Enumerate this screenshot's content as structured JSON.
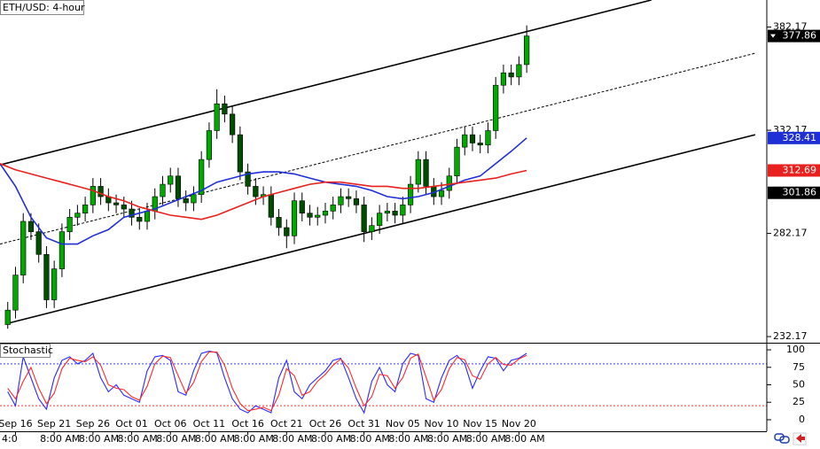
{
  "chart_data": {
    "type": "candlestick",
    "title": "ETH/USD: 4-hour",
    "xlim": [
      -2,
      97
    ],
    "xticks": [
      {
        "value": 0,
        "label": "Sep 16"
      },
      {
        "value": 5,
        "label": "Sep 21"
      },
      {
        "value": 10,
        "label": "Sep 26"
      },
      {
        "value": 15,
        "label": "Oct 01"
      },
      {
        "value": 20,
        "label": "Oct 06"
      },
      {
        "value": 25,
        "label": "Oct 11"
      },
      {
        "value": 30,
        "label": "Oct 16"
      },
      {
        "value": 35,
        "label": "Oct 21"
      },
      {
        "value": 40,
        "label": "Oct 26"
      },
      {
        "value": 45,
        "label": "Oct 31"
      },
      {
        "value": 50,
        "label": "Nov 05"
      },
      {
        "value": 55,
        "label": "Nov 10"
      },
      {
        "value": 60,
        "label": "Nov 15"
      },
      {
        "value": 65,
        "label": "Nov 20"
      }
    ],
    "x_sublabels": [
      "4:0",
      "8:00 AM",
      "8:00 AM",
      "8:00 AM",
      "8:00 AM",
      "8:00 AM",
      "8:00 AM",
      "8:00 AM",
      "8:00 AM",
      "8:00 AM",
      "8:00 AM",
      "8:00 AM",
      "8:00 AM",
      "8:00 AM"
    ],
    "ylim": [
      229.2,
      395.3
    ],
    "yticks": [
      232.17,
      282.17,
      332.17,
      382.17
    ],
    "up_color": "#00a800",
    "down_color": "#004d00",
    "x": [
      -1,
      0,
      1,
      2,
      3,
      4,
      5,
      6,
      7,
      8,
      9,
      10,
      11,
      12,
      13,
      14,
      15,
      16,
      17,
      18,
      19,
      20,
      21,
      22,
      23,
      24,
      25,
      26,
      27,
      28,
      29,
      30,
      31,
      32,
      33,
      34,
      35,
      36,
      37,
      38,
      39,
      40,
      41,
      42,
      43,
      44,
      45,
      46,
      47,
      48,
      49,
      50,
      51,
      52,
      53,
      54,
      55,
      56,
      57,
      58,
      59,
      60,
      61,
      62,
      63,
      64,
      65,
      66
    ],
    "open": [
      238,
      245,
      262,
      288,
      283,
      272,
      250,
      265,
      283,
      290,
      292,
      296,
      305,
      300,
      297,
      296,
      294,
      290,
      288,
      293,
      300,
      306,
      310,
      299,
      297,
      301,
      318,
      332,
      345,
      340,
      330,
      312,
      305,
      300,
      301,
      290,
      285,
      281,
      298,
      292,
      290,
      291,
      293,
      296,
      300,
      299,
      296,
      283,
      286,
      292,
      293,
      291,
      296,
      306,
      318,
      305,
      300,
      303,
      310,
      324,
      330,
      326,
      325,
      332,
      354,
      360,
      358,
      364
    ],
    "high": [
      249,
      266,
      292,
      292,
      287,
      276,
      269,
      287,
      294,
      296,
      300,
      309,
      309,
      304,
      301,
      300,
      298,
      294,
      297,
      304,
      310,
      314,
      314,
      303,
      305,
      322,
      336,
      352,
      349,
      344,
      334,
      316,
      309,
      305,
      305,
      294,
      289,
      302,
      302,
      296,
      295,
      297,
      300,
      304,
      304,
      303,
      300,
      290,
      296,
      297,
      297,
      300,
      310,
      322,
      322,
      309,
      307,
      314,
      328,
      334,
      334,
      330,
      336,
      358,
      364,
      364,
      368,
      383
    ],
    "low": [
      236,
      241,
      258,
      279,
      268,
      246,
      246,
      261,
      279,
      286,
      288,
      292,
      296,
      293,
      292,
      290,
      286,
      284,
      284,
      289,
      296,
      302,
      295,
      293,
      293,
      297,
      314,
      328,
      336,
      326,
      308,
      301,
      296,
      296,
      286,
      281,
      275,
      277,
      288,
      286,
      286,
      287,
      289,
      292,
      295,
      292,
      278,
      279,
      282,
      288,
      287,
      287,
      292,
      302,
      301,
      296,
      296,
      299,
      306,
      320,
      322,
      321,
      321,
      328,
      350,
      354,
      354,
      360
    ],
    "close": [
      245,
      262,
      288,
      283,
      272,
      250,
      265,
      283,
      290,
      292,
      296,
      305,
      300,
      297,
      296,
      294,
      290,
      288,
      293,
      300,
      306,
      310,
      299,
      297,
      301,
      318,
      332,
      345,
      340,
      330,
      312,
      305,
      300,
      301,
      290,
      285,
      281,
      298,
      292,
      290,
      291,
      293,
      296,
      300,
      299,
      296,
      283,
      286,
      292,
      293,
      291,
      296,
      306,
      318,
      305,
      300,
      303,
      310,
      324,
      330,
      326,
      325,
      332,
      354,
      360,
      358,
      364,
      377.86
    ],
    "series": [
      {
        "color": "#1f2fd6",
        "x": [
          -2,
          0,
          2,
          4,
          6,
          8,
          10,
          12,
          14,
          16,
          18,
          20,
          22,
          24,
          26,
          28,
          30,
          32,
          34,
          36,
          38,
          40,
          42,
          44,
          46,
          48,
          50,
          52,
          54,
          56,
          58,
          60,
          62,
          64,
          66
        ],
        "values": [
          316,
          305,
          290,
          280,
          277,
          277,
          281,
          284,
          290,
          292,
          294,
          297,
          300,
          303,
          307,
          309,
          311,
          312,
          312,
          311,
          309,
          307,
          306,
          305,
          303,
          300,
          299,
          300,
          302,
          305,
          308,
          310,
          316,
          322,
          328.41
        ]
      },
      {
        "color": "#e8201e",
        "x": [
          -2,
          0,
          2,
          4,
          6,
          8,
          10,
          12,
          14,
          16,
          18,
          20,
          22,
          24,
          26,
          28,
          30,
          32,
          34,
          36,
          38,
          40,
          42,
          44,
          46,
          48,
          50,
          52,
          54,
          56,
          58,
          60,
          62,
          64,
          66
        ],
        "values": [
          316,
          313,
          311,
          309,
          307,
          305,
          303,
          300,
          298,
          295,
          293,
          291,
          290,
          289,
          291,
          294,
          297,
          300,
          302,
          304,
          306,
          307,
          307,
          306,
          305,
          305,
          304,
          304,
          305,
          306,
          307,
          308,
          309,
          311,
          312.69
        ]
      }
    ],
    "trendlines": [
      {
        "x": [
          -2,
          82.1
        ],
        "values": [
          315.4,
          395.3
        ],
        "dashed": false
      },
      {
        "x": [
          -2,
          95.5
        ],
        "values": [
          277,
          369.5
        ],
        "dashed": true
      },
      {
        "x": [
          -1,
          95.5
        ],
        "values": [
          238.6,
          330.0
        ],
        "dashed": false
      }
    ],
    "marker_price": 301.86,
    "stochastic": {
      "title": "Stochastic",
      "ylim": [
        -16.5,
        108.9
      ],
      "yticks": [
        0,
        25,
        50,
        75,
        100
      ],
      "levels": [
        {
          "value": 80,
          "color": "#3b3bff"
        },
        {
          "value": 20,
          "color": "#ff3030"
        }
      ],
      "series": [
        {
          "color": "#2a2aff",
          "values": [
            40,
            20,
            90,
            60,
            30,
            15,
            60,
            85,
            90,
            80,
            85,
            95,
            60,
            40,
            50,
            35,
            30,
            25,
            70,
            90,
            92,
            85,
            40,
            35,
            70,
            95,
            98,
            96,
            60,
            30,
            15,
            10,
            20,
            15,
            10,
            60,
            85,
            40,
            30,
            50,
            60,
            70,
            85,
            88,
            60,
            30,
            10,
            55,
            75,
            50,
            40,
            80,
            95,
            92,
            30,
            25,
            60,
            85,
            92,
            80,
            45,
            70,
            90,
            88,
            70,
            85,
            88,
            95
          ]
        },
        {
          "color": "#ff2a2a",
          "values": [
            45,
            30,
            55,
            75,
            45,
            23,
            38,
            73,
            88,
            85,
            83,
            90,
            78,
            50,
            45,
            43,
            33,
            28,
            48,
            80,
            91,
            89,
            63,
            38,
            53,
            83,
            97,
            97,
            78,
            45,
            23,
            13,
            15,
            18,
            13,
            35,
            73,
            63,
            35,
            40,
            55,
            65,
            78,
            87,
            74,
            45,
            20,
            33,
            65,
            63,
            45,
            60,
            88,
            94,
            61,
            28,
            43,
            73,
            89,
            86,
            63,
            58,
            80,
            89,
            79,
            78,
            87,
            92
          ]
        }
      ]
    }
  }
}
